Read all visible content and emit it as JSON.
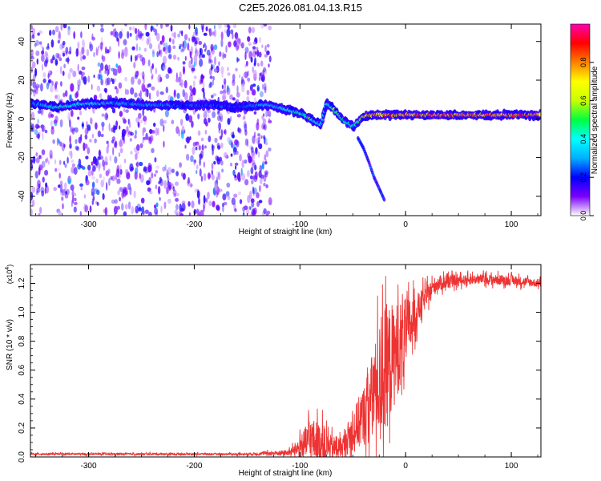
{
  "title": "C2E5.2026.081.04.13.R15",
  "chart_data": [
    {
      "type": "heatmap",
      "xlabel": "Height of straight line (km)",
      "ylabel": "Frequency (Hz)",
      "xlim": [
        -355,
        128
      ],
      "ylim": [
        -50,
        49
      ],
      "xticks": [
        -300,
        -200,
        -100,
        0,
        100
      ],
      "yticks": [
        -40,
        -20,
        0,
        20,
        40
      ],
      "colorbar": {
        "label": "Normalized spectral amplitude",
        "range": [
          0.0,
          1.0
        ],
        "ticks": [
          0.0,
          0.2,
          0.4,
          0.6,
          0.8
        ],
        "colormap": [
          "#ffffff",
          "#7b00ff",
          "#0000ff",
          "#00b0ff",
          "#00ffff",
          "#00ff40",
          "#c8ff00",
          "#ffff00",
          "#ff8000",
          "#ff0000",
          "#ff00b0"
        ]
      },
      "noise_region": {
        "x_from": -355,
        "x_to": -128,
        "amplitude": 0.15
      },
      "ridge": {
        "x": [
          -355,
          -330,
          -300,
          -270,
          -240,
          -210,
          -180,
          -160,
          -140,
          -128,
          -115,
          -100,
          -90,
          -80,
          -75,
          -70,
          -65,
          -60,
          -55,
          -50,
          -45,
          -40,
          -30,
          -20,
          0,
          25,
          50,
          75,
          100,
          128
        ],
        "frequency": [
          8,
          6,
          8,
          8,
          7,
          7,
          7,
          6,
          7,
          7,
          5,
          3,
          0,
          -3,
          8,
          6,
          3,
          0,
          -2,
          -4,
          -2,
          1,
          2,
          2,
          2,
          2,
          2,
          2,
          2,
          2
        ],
        "amplitude": [
          0.25,
          0.45,
          0.4,
          0.3,
          0.3,
          0.25,
          0.25,
          0.25,
          0.3,
          0.35,
          0.4,
          0.45,
          0.5,
          0.35,
          0.4,
          0.55,
          0.5,
          0.5,
          0.45,
          0.4,
          0.45,
          0.7,
          0.8,
          0.85,
          0.85,
          0.85,
          0.85,
          0.85,
          0.85,
          0.9
        ]
      },
      "secondary_trace": {
        "x": [
          -45,
          -40,
          -35,
          -30,
          -25,
          -20
        ],
        "frequency": [
          -10,
          -15,
          -22,
          -30,
          -36,
          -42
        ],
        "amplitude": 0.2
      }
    },
    {
      "type": "line",
      "xlabel": "Height of straight line (km)",
      "ylabel": "SNR (10 * v/v)",
      "y_multiplier": "(x10",
      "y_multiplier_exp": "4",
      "xlim": [
        -355,
        128
      ],
      "ylim": [
        0.0,
        1.33
      ],
      "xticks": [
        -300,
        -200,
        -100,
        0,
        100
      ],
      "yticks": [
        "0.0",
        "0.2",
        "0.4",
        "0.6",
        "0.8",
        "1.0",
        "1.2"
      ],
      "color": "#ee3333",
      "series": [
        {
          "x": [
            -355,
            -150,
            -110,
            -100,
            -90,
            -80,
            -70,
            -60,
            -50,
            -40,
            -30,
            -20,
            -10,
            0,
            10,
            20,
            30,
            50,
            70,
            100,
            128
          ],
          "center": [
            0.02,
            0.02,
            0.03,
            0.07,
            0.12,
            0.09,
            0.06,
            0.07,
            0.18,
            0.28,
            0.45,
            0.6,
            0.72,
            0.85,
            1.0,
            1.12,
            1.2,
            1.22,
            1.23,
            1.22,
            1.2
          ],
          "spread": [
            0.01,
            0.01,
            0.03,
            0.1,
            0.22,
            0.2,
            0.12,
            0.1,
            0.2,
            0.3,
            0.45,
            0.65,
            0.5,
            0.35,
            0.18,
            0.1,
            0.08,
            0.05,
            0.05,
            0.05,
            0.04
          ]
        }
      ]
    }
  ]
}
